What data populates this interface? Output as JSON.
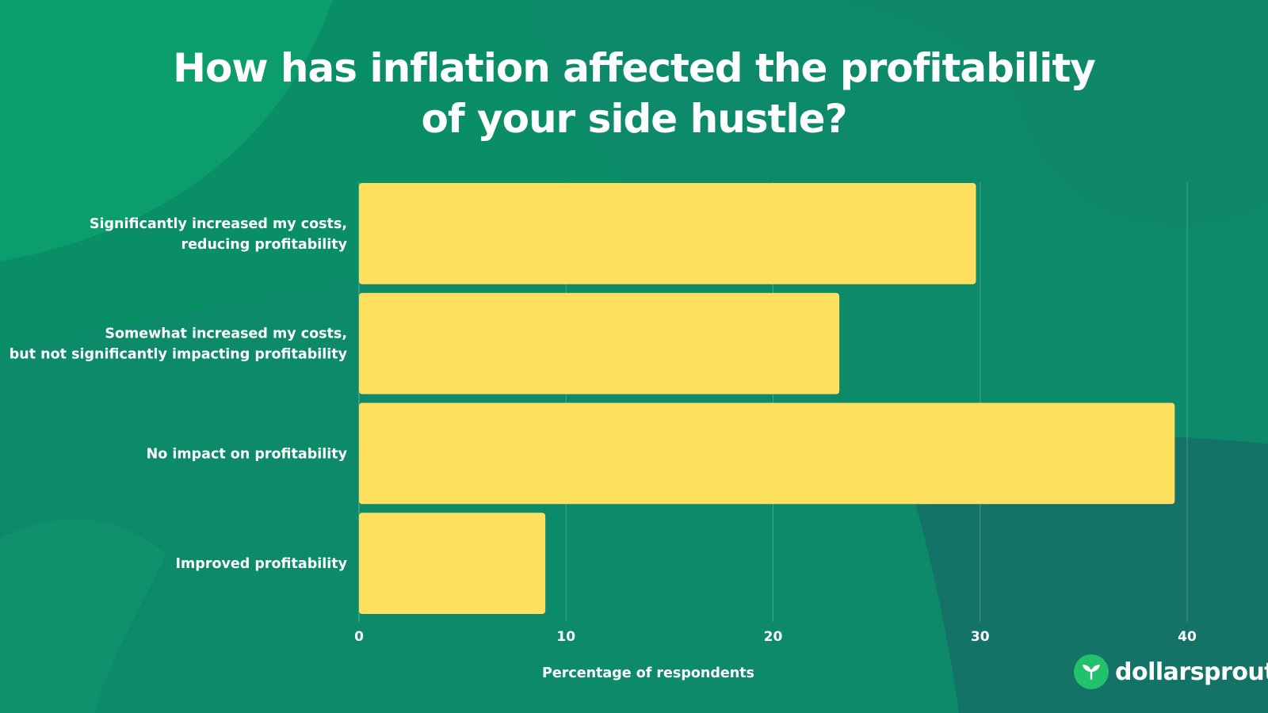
{
  "title": {
    "line1": "How has inflation affected the profitability",
    "line2": "of your side hustle?"
  },
  "brand": {
    "name": "dollarsprout",
    "icon": "sprout-icon"
  },
  "colors": {
    "background": "#0c8a69",
    "bar": "#ffdf5e",
    "brand_mark": "#22c16b",
    "text": "#ffffff"
  },
  "chart_data": {
    "type": "bar",
    "orientation": "horizontal",
    "title": "How has inflation affected the profitability of your side hustle?",
    "xlabel": "Percentage of respondents",
    "ylabel": "",
    "categories": [
      [
        "Significantly increased my costs,",
        "reducing profitability"
      ],
      [
        "Somewhat increased my costs,",
        "but not significantly impacting profitability"
      ],
      [
        "No impact on profitability"
      ],
      [
        "Improved profitability"
      ]
    ],
    "values": [
      29.8,
      23.2,
      39.4,
      9.0
    ],
    "xlim": [
      0,
      40
    ],
    "xticks": [
      0,
      10,
      20,
      30,
      40
    ],
    "grid": "vertical",
    "legend": "none"
  }
}
